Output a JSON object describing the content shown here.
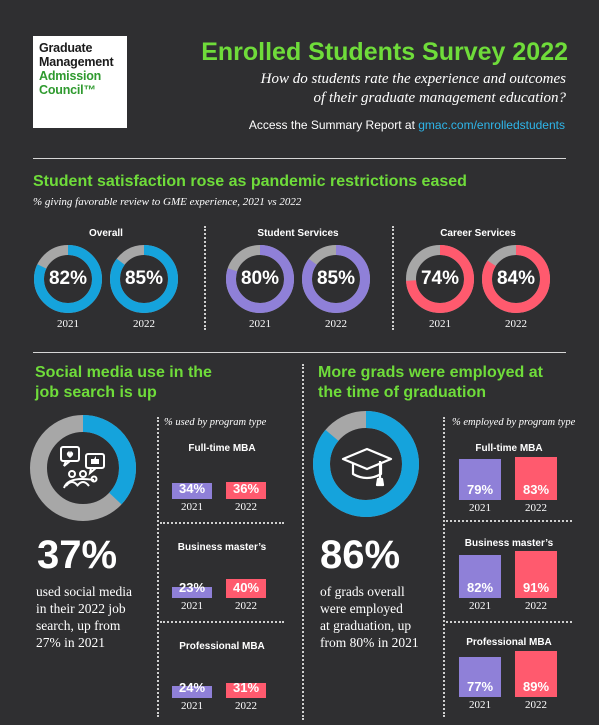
{
  "logo": {
    "line1": "Graduate",
    "line2": "Management",
    "line3": "Admission",
    "line4": "Council™"
  },
  "header": {
    "title": "Enrolled Students Survey 2022",
    "subtitle_line1": "How do students rate the experience and outcomes",
    "subtitle_line2": "of their graduate management education?",
    "access_text": "Access the Summary Report at ",
    "access_link": "gmac.com/enrolledstudents"
  },
  "colors": {
    "green": "#6fdc3a",
    "blue": "#15a3dc",
    "purple": "#8f80d8",
    "red": "#ff5a6e",
    "gray": "#a7a7a7",
    "bg": "#2f2f31"
  },
  "satisfaction": {
    "heading": "Student satisfaction rose as pandemic restrictions eased",
    "note": "% giving favorable review to GME experience, 2021 vs 2022",
    "groups": [
      {
        "label": "Overall",
        "color": "#15a3dc",
        "items": [
          {
            "year": "2021",
            "value": 82,
            "text": "82%"
          },
          {
            "year": "2022",
            "value": 85,
            "text": "85%"
          }
        ]
      },
      {
        "label": "Student Services",
        "color": "#8f80d8",
        "items": [
          {
            "year": "2021",
            "value": 80,
            "text": "80%"
          },
          {
            "year": "2022",
            "value": 85,
            "text": "85%"
          }
        ]
      },
      {
        "label": "Career Services",
        "color": "#ff5a6e",
        "items": [
          {
            "year": "2021",
            "value": 74,
            "text": "74%"
          },
          {
            "year": "2022",
            "value": 84,
            "text": "84%"
          }
        ]
      }
    ]
  },
  "social": {
    "heading_line1": "Social media use in the",
    "heading_line2": "job search is up",
    "ring_value": 37,
    "icon": "social-media-icon",
    "big": "37%",
    "desc_line1": "used social media",
    "desc_line2": "in their 2022 job",
    "desc_line3": "search, up from",
    "desc_line4": "27% in 2021",
    "note": "% used by program type",
    "programs": [
      {
        "label": "Full-time MBA",
        "items": [
          {
            "year": "2021",
            "value": 34,
            "text": "34%"
          },
          {
            "year": "2022",
            "value": 36,
            "text": "36%"
          }
        ]
      },
      {
        "label": "Business master’s",
        "items": [
          {
            "year": "2021",
            "value": 23,
            "text": "23%"
          },
          {
            "year": "2022",
            "value": 40,
            "text": "40%"
          }
        ]
      },
      {
        "label": "Professional MBA",
        "items": [
          {
            "year": "2021",
            "value": 24,
            "text": "24%"
          },
          {
            "year": "2022",
            "value": 31,
            "text": "31%"
          }
        ]
      }
    ]
  },
  "employment": {
    "heading_line1": "More grads were employed at",
    "heading_line2": "the time of graduation",
    "ring_value": 86,
    "icon": "graduation-cap-icon",
    "big": "86%",
    "desc_line1": "of grads overall",
    "desc_line2": "were employed",
    "desc_line3": "at graduation, up",
    "desc_line4": "from 80% in 2021",
    "note": "% employed by program type",
    "programs": [
      {
        "label": "Full-time MBA",
        "items": [
          {
            "year": "2021",
            "value": 79,
            "text": "79%"
          },
          {
            "year": "2022",
            "value": 83,
            "text": "83%"
          }
        ]
      },
      {
        "label": "Business master’s",
        "items": [
          {
            "year": "2021",
            "value": 82,
            "text": "82%"
          },
          {
            "year": "2022",
            "value": 91,
            "text": "91%"
          }
        ]
      },
      {
        "label": "Professional MBA",
        "items": [
          {
            "year": "2021",
            "value": 77,
            "text": "77%"
          },
          {
            "year": "2022",
            "value": 89,
            "text": "89%"
          }
        ]
      }
    ]
  }
}
